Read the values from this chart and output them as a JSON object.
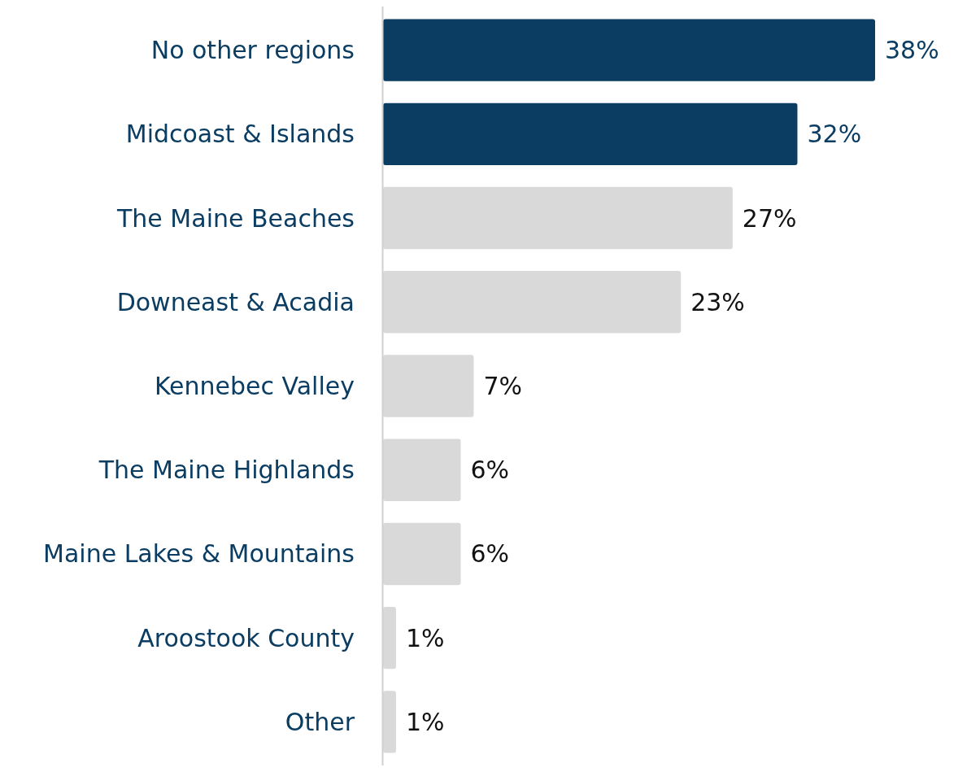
{
  "chart_data": {
    "type": "bar",
    "orientation": "horizontal",
    "categories": [
      "No other regions",
      "Midcoast & Islands",
      "The Maine Beaches",
      "Downeast & Acadia",
      "Kennebec Valley",
      "The Maine Highlands",
      "Maine Lakes & Mountains",
      "Aroostook County",
      "Other"
    ],
    "values": [
      38,
      32,
      27,
      23,
      7,
      6,
      6,
      1,
      1
    ],
    "colors": [
      "#0b3d62",
      "#0b3d62",
      "#d9d9d9",
      "#d9d9d9",
      "#d9d9d9",
      "#d9d9d9",
      "#d9d9d9",
      "#d9d9d9",
      "#d9d9d9"
    ],
    "value_labels": [
      "38%",
      "32%",
      "27%",
      "23%",
      "7%",
      "6%",
      "6%",
      "1%",
      "1%"
    ]
  }
}
